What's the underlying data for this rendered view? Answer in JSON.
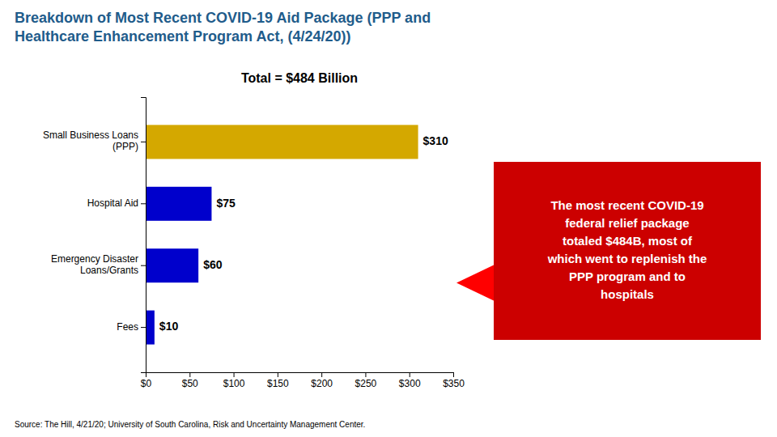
{
  "chart_data": {
    "type": "bar",
    "orientation": "horizontal",
    "title": "Breakdown of Most Recent COVID-19 Aid Package (PPP and\nHealthcare Enhancement Program Act, (4/24/20))",
    "subtitle": "Total = $484 Billion",
    "categories": [
      "Fees",
      "Emergency Disaster\nLoans/Grants",
      "Hospital Aid",
      "Small Business Loans\n(PPP)"
    ],
    "values": [
      10,
      60,
      75,
      310
    ],
    "value_labels": [
      "$10",
      "$60",
      "$75",
      "$310"
    ],
    "data_labels": true,
    "colors": [
      "#0000cc",
      "#0000cc",
      "#0000cc",
      "#d4a800"
    ],
    "xlim": [
      0,
      350
    ],
    "xticks": [
      {
        "value": 0,
        "label": "$0"
      },
      {
        "value": 50,
        "label": "$50"
      },
      {
        "value": 100,
        "label": "$100"
      },
      {
        "value": 150,
        "label": "$150"
      },
      {
        "value": 200,
        "label": "$200"
      },
      {
        "value": 250,
        "label": "$250"
      },
      {
        "value": 300,
        "label": "$300"
      },
      {
        "value": 350,
        "label": "$350"
      }
    ],
    "grid": false,
    "annotation": "The most recent COVID-19\nfederal relief package\ntotaled $484B, most of\nwhich went to replenish the\nPPP program and to\nhospitals",
    "source": "Source: The Hill, 4/21/20; University of South Carolina, Risk and Uncertainty Management Center."
  }
}
